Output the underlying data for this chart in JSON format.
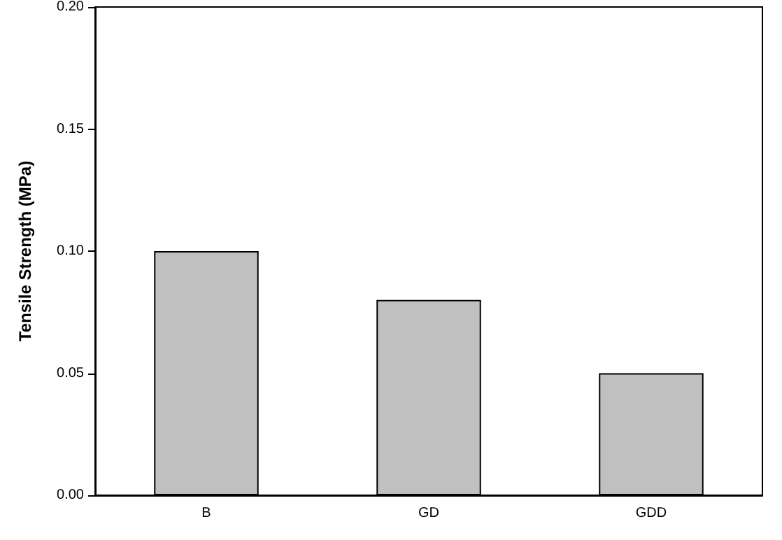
{
  "chart_data": {
    "type": "bar",
    "ylabel": "Tensile Strength (MPa)",
    "categories": [
      "B",
      "GD",
      "GDD"
    ],
    "values": [
      0.1,
      0.08,
      0.05
    ],
    "color": "#c0c0c0",
    "ylim": [
      0,
      0.2
    ],
    "yticks": [
      {
        "value": 0,
        "label": "0.00"
      },
      {
        "value": 0.05,
        "label": "0.05"
      },
      {
        "value": 0.1,
        "label": "0.10"
      },
      {
        "value": 0.15,
        "label": "0.15"
      },
      {
        "value": 0.2,
        "label": "0.20"
      }
    ],
    "grid": false
  }
}
